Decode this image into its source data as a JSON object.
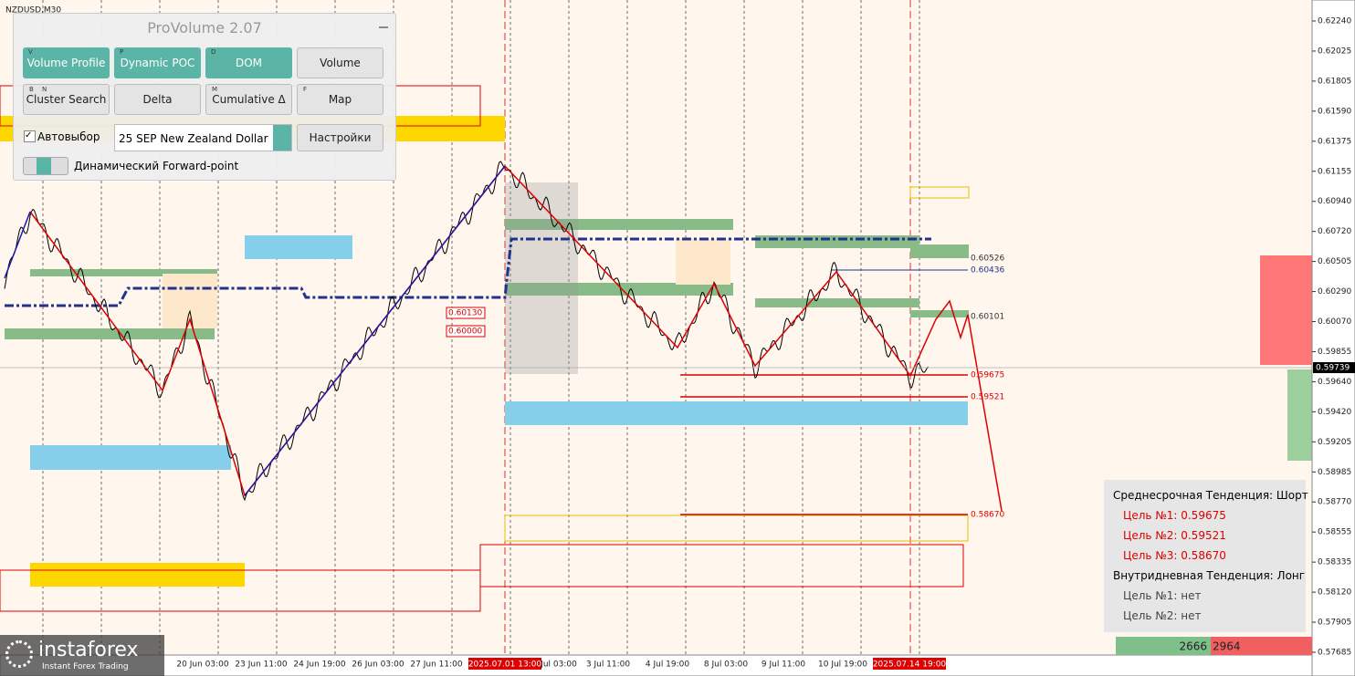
{
  "header": {
    "symbol": "NZDUSD,M30"
  },
  "panel": {
    "title": "ProVolume 2.07",
    "buttons": [
      {
        "label": "Volume Profile",
        "keys": [
          "V"
        ]
      },
      {
        "label": "Dynamic POC",
        "keys": [
          "P"
        ]
      },
      {
        "label": "DOM",
        "keys": [
          "D"
        ]
      },
      {
        "label": "Volume",
        "keys": []
      },
      {
        "label": "Cluster Search",
        "keys": [
          "B",
          "N"
        ]
      },
      {
        "label": "Delta",
        "keys": []
      },
      {
        "label": "Cumulative Δ",
        "keys": [
          "M"
        ]
      },
      {
        "label": "Map",
        "keys": [
          "F"
        ]
      }
    ],
    "auto_select": "Автовыбор",
    "contract": "25 SEP New Zealand Dollar",
    "settings": "Настройки",
    "forward_point": "Динамический Forward-point"
  },
  "price_axis": {
    "ticks": [
      "0.62240",
      "0.62025",
      "0.61805",
      "0.61590",
      "0.61375",
      "0.61155",
      "0.60940",
      "0.60720",
      "0.60505",
      "0.60290",
      "0.60070",
      "0.59855",
      "0.59640",
      "0.59420",
      "0.59205",
      "0.58985",
      "0.58770",
      "0.58555",
      "0.58335",
      "0.58120",
      "0.57905",
      "0.57685"
    ],
    "current": "0.59739"
  },
  "time_axis": {
    "labels": [
      "20 Jun 03:00",
      "23 Jun 11:00",
      "24 Jun 19:00",
      "26 Jun 03:00",
      "27 Jun 11:00",
      "2025.07.01 13:00",
      "Jul 03:00",
      "3 Jul 11:00",
      "4 Jul 19:00",
      "8 Jul 03:00",
      "9 Jul 11:00",
      "10 Jul 19:00",
      "2025.07.14 19:00"
    ]
  },
  "levels": [
    "0.60526",
    "0.60436",
    "0.60101",
    "0.59675",
    "0.59521",
    "0.58670",
    "0.60130",
    "0.60000"
  ],
  "trend_box": {
    "mid_term": "Среднесрочная Тенденция: Шорт",
    "mid_targets": [
      "Цель №1: 0.59675",
      "Цель №2: 0.59521",
      "Цель №3: 0.58670"
    ],
    "intraday": "Внутридневная Тенденция: Лонг",
    "intraday_targets": [
      "Цель №1: нет",
      "Цель №2: нет"
    ]
  },
  "counters": [
    "2666",
    "2964"
  ],
  "logo": {
    "name": "instaforex",
    "tagline": "Instant Forex Trading"
  }
}
